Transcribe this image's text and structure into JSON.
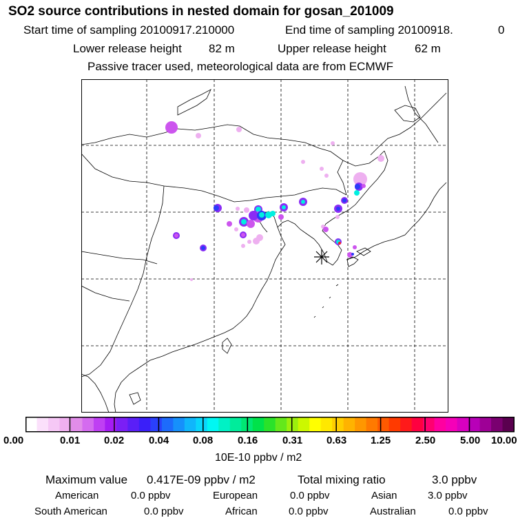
{
  "header": {
    "title": "SO2 source contributions in nested domain for gosan_201009",
    "start_label": "Start time of sampling 20100917.210000",
    "end_label": "End time of sampling 20100918.",
    "end_value": "0",
    "lower_label": "Lower release height",
    "lower_value": "82 m",
    "upper_label": "Upper release height",
    "upper_value": "62 m",
    "tracer_note": "Passive tracer used, meteorological data are from ECMWF"
  },
  "colorbar": {
    "tick_labels": [
      "0.00",
      "0.01",
      "0.02",
      "0.04",
      "0.08",
      "0.16",
      "0.31",
      "0.63",
      "1.25",
      "2.50",
      "5.00",
      "10.00"
    ],
    "unit": "10E-10 ppbv / m2",
    "colors": [
      "#ffffff",
      "#fbe0fb",
      "#f6c8f6",
      "#f0b0f0",
      "#e18de9",
      "#d46bef",
      "#bf3ff3",
      "#a51cf3",
      "#7b1ff5",
      "#5a1ff7",
      "#3a1ff9",
      "#2a40fb",
      "#1d6bfb",
      "#1690fb",
      "#10b6fb",
      "#09d6fb",
      "#00f7f3",
      "#00f1c5",
      "#00ec9b",
      "#00e873",
      "#00e24a",
      "#2ae22a",
      "#64e81b",
      "#9cf00d",
      "#ccf800",
      "#ffff00",
      "#ffe800",
      "#ffce00",
      "#ffb300",
      "#ff9700",
      "#ff7a00",
      "#ff5a00",
      "#ff3a00",
      "#ff1a1a",
      "#ff0040",
      "#ff0070",
      "#ff00a0",
      "#f500b8",
      "#d800c0",
      "#b800b8",
      "#9e0096",
      "#7a0070",
      "#5a004f"
    ]
  },
  "stats": {
    "max_label": "Maximum value",
    "max_value": "0.417E-09 ppbv / m2",
    "total_label": "Total mixing ratio",
    "total_value": "3.0 ppbv"
  },
  "regions": [
    {
      "name": "American",
      "value": "0.0 ppbv"
    },
    {
      "name": "European",
      "value": "0.0 ppbv"
    },
    {
      "name": "Asian",
      "value": "3.0 ppbv"
    },
    {
      "name": "South American",
      "value": "0.0 ppbv"
    },
    {
      "name": "African",
      "value": "0.0 ppbv"
    },
    {
      "name": "Australian",
      "value": "0.0 ppbv"
    }
  ],
  "map": {
    "receptor_marker": "asterisk-icon",
    "plume_colors": {
      "light": "#eeb0f0",
      "mid": "#cc55ee",
      "strong": "#8a2cf5",
      "core": "#2a3cf7",
      "hot": "#00f0e0",
      "peak": "#ff2020"
    }
  }
}
